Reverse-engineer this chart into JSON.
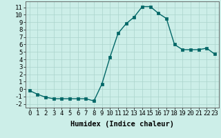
{
  "x": [
    0,
    1,
    2,
    3,
    4,
    5,
    6,
    7,
    8,
    9,
    10,
    11,
    12,
    13,
    14,
    15,
    16,
    17,
    18,
    19,
    20,
    21,
    22,
    23
  ],
  "y": [
    -0.2,
    -0.7,
    -1.1,
    -1.3,
    -1.3,
    -1.3,
    -1.3,
    -1.3,
    -1.6,
    0.7,
    4.3,
    7.5,
    8.8,
    9.7,
    11.1,
    11.1,
    10.2,
    9.5,
    6.0,
    5.3,
    5.3,
    5.3,
    5.5,
    4.7
  ],
  "line_color": "#006666",
  "marker_color": "#006666",
  "bg_color": "#cceee8",
  "grid_color": "#aad4cc",
  "xlabel": "Humidex (Indice chaleur)",
  "ylim": [
    -2.5,
    11.8
  ],
  "xlim": [
    -0.5,
    23.5
  ],
  "yticks": [
    -2,
    -1,
    0,
    1,
    2,
    3,
    4,
    5,
    6,
    7,
    8,
    9,
    10,
    11
  ],
  "xticks": [
    0,
    1,
    2,
    3,
    4,
    5,
    6,
    7,
    8,
    9,
    10,
    11,
    12,
    13,
    14,
    15,
    16,
    17,
    18,
    19,
    20,
    21,
    22,
    23
  ],
  "xlabel_fontsize": 7.5,
  "tick_fontsize": 6.5,
  "line_width": 1.0,
  "marker_size": 2.5
}
